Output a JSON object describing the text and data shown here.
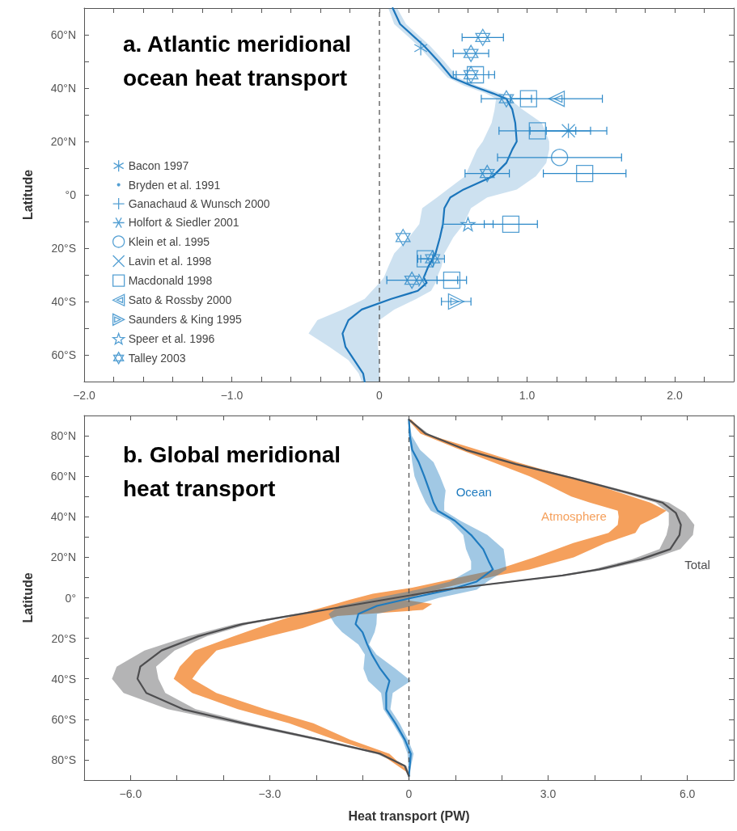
{
  "chart_data": [
    {
      "type": "line",
      "orientation": "horizontal",
      "title": "a. Atlantic meridional ocean heat transport",
      "ylabel": "Latitude",
      "xlim": [
        -2,
        2.4
      ],
      "xticks": [
        {
          "value": -2,
          "label": "−2.0"
        },
        {
          "value": -1.8,
          "label": null
        },
        {
          "value": -1.6,
          "label": null
        },
        {
          "value": -1.4,
          "label": null
        },
        {
          "value": -1.2,
          "label": null
        },
        {
          "value": -1,
          "label": "−1.0"
        },
        {
          "value": -0.8,
          "label": null
        },
        {
          "value": -0.6,
          "label": null
        },
        {
          "value": -0.4,
          "label": null
        },
        {
          "value": -0.2,
          "label": null
        },
        0,
        {
          "value": 0.2,
          "label": null
        },
        {
          "value": 0.4,
          "label": null
        },
        {
          "value": 0.6,
          "label": null
        },
        {
          "value": 0.8,
          "label": null
        },
        {
          "value": 1,
          "label": "1.0"
        },
        {
          "value": 1.2,
          "label": null
        },
        {
          "value": 1.4,
          "label": null
        },
        {
          "value": 1.6,
          "label": null
        },
        {
          "value": 1.8,
          "label": null
        },
        {
          "value": 2,
          "label": "2.0"
        },
        {
          "value": 2.2,
          "label": null
        }
      ],
      "ylim": [
        -70,
        70
      ],
      "yticks": [
        {
          "value": 60,
          "label": "60°N"
        },
        {
          "value": 50,
          "label": null
        },
        {
          "value": 40,
          "label": "40°N"
        },
        {
          "value": 30,
          "label": null
        },
        {
          "value": 20,
          "label": "20°N"
        },
        {
          "value": 10,
          "label": null
        },
        {
          "value": 0,
          "label": "°0"
        },
        {
          "value": -10,
          "label": null
        },
        {
          "value": -20,
          "label": "20°S"
        },
        {
          "value": -30,
          "label": null
        },
        {
          "value": -40,
          "label": "40°S"
        },
        {
          "value": -50,
          "label": null
        },
        {
          "value": -60,
          "label": "60°S"
        }
      ],
      "legend": "left",
      "ref_lines": [
        {
          "axis": "x",
          "value": 0,
          "color": "#555555",
          "line_style": "dashed"
        }
      ],
      "series": [
        {
          "color": "#1b75bb",
          "x": [
            70,
            64,
            56,
            50,
            44,
            41,
            38,
            36,
            32,
            27,
            20,
            17,
            12,
            7,
            2,
            -1,
            -5,
            -11,
            -16,
            -22,
            -27,
            -31,
            -33,
            -36,
            -39,
            -43,
            -47,
            -52,
            -57,
            -62,
            -67,
            -70
          ],
          "values": [
            0.09,
            0.14,
            0.3,
            0.4,
            0.49,
            0.62,
            0.77,
            0.86,
            0.9,
            0.92,
            0.93,
            0.9,
            0.86,
            0.77,
            0.57,
            0.48,
            0.44,
            0.43,
            0.41,
            0.38,
            0.33,
            0.3,
            0.32,
            0.26,
            0.08,
            -0.12,
            -0.21,
            -0.25,
            -0.23,
            -0.17,
            -0.11,
            -0.1
          ],
          "lower": [
            0.06,
            0.1,
            0.26,
            0.36,
            0.46,
            0.57,
            0.72,
            0.79,
            0.78,
            0.76,
            0.7,
            0.66,
            0.62,
            0.58,
            0.46,
            0.39,
            0.29,
            0.27,
            0.2,
            0.1,
            0.06,
            0.03,
            0.0,
            -0.05,
            -0.1,
            -0.25,
            -0.42,
            -0.48,
            -0.34,
            -0.21,
            -0.14,
            -0.12
          ],
          "upper": [
            0.12,
            0.18,
            0.34,
            0.44,
            0.53,
            0.66,
            0.82,
            0.88,
            0.97,
            1.1,
            1.15,
            1.15,
            1.13,
            1.06,
            0.93,
            0.73,
            0.62,
            0.57,
            0.5,
            0.44,
            0.42,
            0.39,
            0.38,
            0.35,
            0.25,
            0.1,
            0.0,
            -0.01,
            -0.01,
            0.0,
            0.0,
            0.0
          ]
        },
        {
          "type": "scatter",
          "name": "Bacon 1997",
          "color": "#2b88c8",
          "marker": "cross",
          "x": [
            55
          ],
          "values": [
            0.28
          ]
        },
        {
          "type": "scatter",
          "name": "Bryden et al. 1991",
          "color": "#2b88c8",
          "marker": "circle"
        },
        {
          "type": "scatter",
          "name": "Ganachaud & Wunsch 2000",
          "color": "#2b88c8",
          "marker": "cross",
          "x": [
            24
          ],
          "values": [
            1.28
          ],
          "errors": [
            0.15
          ]
        },
        {
          "type": "scatter",
          "name": "Holfort & Siedler 2001",
          "color": "#2b88c8",
          "marker": "cross",
          "x": [
            -32
          ],
          "values": [
            0.29
          ],
          "errors": [
            0.24
          ]
        },
        {
          "type": "scatter",
          "name": "Klein et al. 1995",
          "color": "#2b88c8",
          "marker": "circle",
          "x": [
            14
          ],
          "values": [
            1.22
          ],
          "errors": [
            0.42
          ]
        },
        {
          "type": "scatter",
          "name": "Lavin et al. 1998",
          "color": "#2b88c8",
          "marker": "cross",
          "x": [
            24
          ],
          "values": [
            1.28
          ],
          "errors": [
            0.26
          ]
        },
        {
          "type": "scatter",
          "name": "Macdonald 1998",
          "color": "#2b88c8",
          "marker": "square",
          "x": [
            45,
            36,
            24,
            8,
            -11,
            -24,
            -32
          ],
          "values": [
            0.65,
            1.01,
            1.07,
            1.39,
            0.89,
            0.31,
            0.49
          ],
          "errors": [
            0.13,
            null,
            0.26,
            0.28,
            0.18,
            0.05,
            0.1
          ]
        },
        {
          "type": "scatter",
          "name": "Sato & Rossby 2000",
          "color": "#2b88c8",
          "marker": "triangle",
          "x": [
            36
          ],
          "values": [
            1.2
          ],
          "errors": [
            0.31
          ]
        },
        {
          "type": "scatter",
          "name": "Saunders & King 1995",
          "color": "#2b88c8",
          "marker": "triangle",
          "x": [
            -40
          ],
          "values": [
            0.52
          ],
          "errors": [
            0.1
          ]
        },
        {
          "type": "scatter",
          "name": "Speer et al. 1996",
          "color": "#2b88c8",
          "marker": "star",
          "x": [
            -11
          ],
          "values": [
            0.6
          ],
          "errors": [
            0.17
          ]
        },
        {
          "type": "scatter",
          "name": "Talley 2003",
          "color": "#2b88c8",
          "marker": "star",
          "x": [
            59,
            53,
            45,
            36,
            8,
            -16,
            -24,
            -32
          ],
          "values": [
            0.7,
            0.62,
            0.62,
            0.86,
            0.73,
            0.16,
            0.36,
            0.22
          ],
          "errors": [
            0.14,
            0.12,
            0.12,
            0.17,
            0.15,
            null,
            0.08,
            null
          ]
        }
      ]
    },
    {
      "type": "line",
      "orientation": "horizontal",
      "title": "b. Global meridional heat transport",
      "xlabel": "Heat transport (PW)",
      "ylabel": "Latitude",
      "xlim": [
        -7,
        7
      ],
      "xticks": [
        {
          "value": -6,
          "label": "−6.0"
        },
        {
          "value": -5,
          "label": null
        },
        {
          "value": -4,
          "label": null
        },
        {
          "value": -3,
          "label": "−3.0"
        },
        {
          "value": -2,
          "label": null
        },
        {
          "value": -1,
          "label": null
        },
        0,
        {
          "value": 1,
          "label": null
        },
        {
          "value": 2,
          "label": null
        },
        {
          "value": 3,
          "label": "3.0"
        },
        {
          "value": 4,
          "label": null
        },
        {
          "value": 5,
          "label": null
        },
        {
          "value": 6,
          "label": "6.0"
        }
      ],
      "ylim": [
        -90,
        90
      ],
      "yticks": [
        {
          "value": 80,
          "label": "80°N"
        },
        {
          "value": 70,
          "label": null
        },
        {
          "value": 60,
          "label": "60°N"
        },
        {
          "value": 50,
          "label": null
        },
        {
          "value": 40,
          "label": "40°N"
        },
        {
          "value": 30,
          "label": null
        },
        {
          "value": 20,
          "label": "20°N"
        },
        {
          "value": 10,
          "label": null
        },
        {
          "value": 0,
          "label": "0°"
        },
        {
          "value": -10,
          "label": null
        },
        {
          "value": -20,
          "label": "20°S"
        },
        {
          "value": -30,
          "label": null
        },
        {
          "value": -40,
          "label": "40°S"
        },
        {
          "value": -50,
          "label": null
        },
        {
          "value": -60,
          "label": "60°S"
        },
        {
          "value": -70,
          "label": null
        },
        {
          "value": -80,
          "label": "80°S"
        }
      ],
      "ref_lines": [
        {
          "axis": "x",
          "value": 0,
          "color": "#555555",
          "line_style": "dashed"
        }
      ],
      "series": [
        {
          "name": "Ocean",
          "color": "#1f7bbf",
          "x": [
            88,
            80,
            73,
            67,
            60,
            53,
            47,
            43,
            38,
            31,
            24,
            18,
            14,
            8,
            4,
            0,
            -4,
            -8,
            -13,
            -17,
            -23,
            -28,
            -35,
            -41,
            -47,
            -55,
            -62,
            -70,
            -77,
            -88
          ],
          "values": [
            0,
            0.02,
            0.07,
            0.21,
            0.33,
            0.44,
            0.53,
            0.62,
            0.99,
            1.34,
            1.6,
            1.72,
            1.81,
            1.46,
            0.88,
            0.07,
            -0.69,
            -1.09,
            -1.15,
            -1.0,
            -0.9,
            -0.8,
            -0.62,
            -0.42,
            -0.49,
            -0.49,
            -0.29,
            -0.09,
            0.04,
            0
          ],
          "lower": [
            0,
            0,
            0.04,
            0.07,
            0.12,
            0.24,
            0.36,
            0.47,
            0.88,
            1.17,
            1.23,
            1.34,
            1.34,
            0.88,
            0.18,
            -0.69,
            -1.5,
            -1.73,
            -1.6,
            -1.44,
            -1.09,
            -0.95,
            -0.98,
            -0.88,
            -0.6,
            -0.55,
            -0.35,
            -0.14,
            -0.03,
            0
          ],
          "upper": [
            0,
            0.06,
            0.24,
            0.53,
            0.67,
            0.79,
            0.76,
            0.76,
            1.11,
            1.69,
            2.04,
            2.08,
            2.1,
            1.69,
            1.46,
            0.65,
            0.07,
            -0.69,
            -0.7,
            -0.74,
            -0.86,
            -0.7,
            -0.29,
            0.04,
            -0.35,
            -0.4,
            -0.2,
            -0.02,
            0.1,
            0
          ]
        },
        {
          "name": "Atmosphere",
          "color": "#f5a05c",
          "x": [
            88,
            81,
            74,
            67,
            60,
            56,
            50,
            47,
            43,
            40,
            36,
            32,
            27,
            20,
            14,
            11,
            8,
            5,
            2,
            -1,
            -3,
            -6,
            -9,
            -12,
            -15,
            -19,
            -26,
            -34,
            -40,
            -47,
            -55,
            -62,
            -70,
            -77,
            -86
          ],
          "values": [
            null,
            null,
            null,
            null,
            null,
            null,
            null,
            null,
            null,
            null,
            null,
            null,
            null,
            null,
            null,
            null,
            null,
            null,
            null,
            null,
            null,
            null,
            null,
            null,
            null,
            null,
            null,
            null,
            null,
            null,
            null,
            null,
            null,
            null,
            null
          ],
          "lower": [
            -0.02,
            0.25,
            1.0,
            1.81,
            2.6,
            2.97,
            3.5,
            3.9,
            4.5,
            4.52,
            4.5,
            4.3,
            3.54,
            2.7,
            1.9,
            1.27,
            0.68,
            0.07,
            -0.78,
            -1.28,
            -1.58,
            -2.05,
            -2.5,
            -2.9,
            -3.28,
            -3.77,
            -4.61,
            -4.94,
            -5.07,
            -4.67,
            -3.69,
            -2.58,
            -1.6,
            -0.62,
            -0.05
          ],
          "upper": [
            0.05,
            0.35,
            1.35,
            2.33,
            3.4,
            4.01,
            4.8,
            5.2,
            5.55,
            5.35,
            4.99,
            4.88,
            4.24,
            3.55,
            2.6,
            1.9,
            1.32,
            0.77,
            0.31,
            -0.1,
            0.5,
            0.3,
            -1.54,
            -1.91,
            -2.29,
            -3.0,
            -4.15,
            -4.48,
            -4.67,
            -4.15,
            -3.1,
            -2.06,
            -1.27,
            -0.42,
            0
          ]
        },
        {
          "name": "Total",
          "color": "#4d4d4f",
          "x": [
            88,
            81,
            73,
            66,
            59,
            52,
            47,
            42,
            36,
            31,
            24,
            19,
            14,
            11,
            4,
            -2,
            -9,
            -13,
            -19,
            -26,
            -34,
            -40,
            -47,
            -55,
            -62,
            -70,
            -77,
            -83,
            -88
          ],
          "values": [
            0,
            0.36,
            1.23,
            2.3,
            3.54,
            4.7,
            5.46,
            5.75,
            5.86,
            5.83,
            5.63,
            5.0,
            4.1,
            3.31,
            0.75,
            -0.8,
            -2.6,
            -3.6,
            -4.54,
            -5.33,
            -5.79,
            -5.85,
            -5.66,
            -4.87,
            -3.56,
            -1.93,
            -0.62,
            -0.09,
            0
          ],
          "lower": [
            -0.02,
            0.3,
            1.15,
            2.2,
            3.42,
            4.58,
            5.32,
            5.6,
            5.6,
            5.55,
            5.4,
            4.8,
            3.95,
            3.2,
            0.65,
            -0.9,
            -2.7,
            -3.75,
            -4.75,
            -5.7,
            -6.3,
            -6.4,
            -6.15,
            -5.2,
            -3.75,
            -2.05,
            -0.7,
            -0.12,
            -0.02
          ],
          "upper": [
            0.02,
            0.42,
            1.3,
            2.4,
            3.62,
            4.8,
            5.6,
            5.95,
            6.15,
            6.12,
            5.85,
            5.2,
            4.25,
            3.4,
            0.85,
            -0.7,
            -2.5,
            -3.45,
            -4.35,
            -5.05,
            -5.45,
            -5.4,
            -5.25,
            -4.6,
            -3.4,
            -1.83,
            -0.55,
            -0.05,
            0.02
          ]
        }
      ]
    }
  ]
}
